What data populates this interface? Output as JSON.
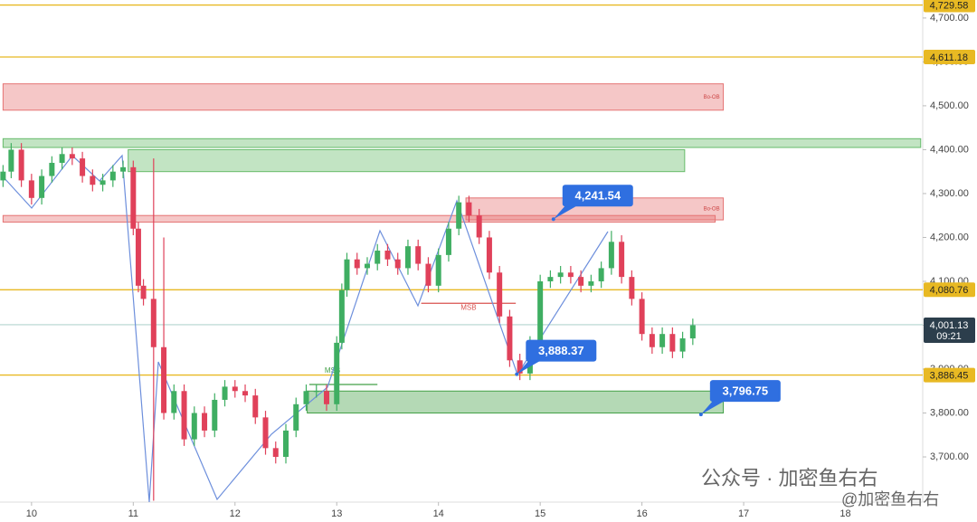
{
  "chart_data": {
    "type": "candlestick",
    "xlim": [
      9.69,
      18.76
    ],
    "ylim": [
      3597,
      4741
    ],
    "xticks": [
      10,
      11,
      12,
      13,
      14,
      15,
      16,
      17,
      18
    ],
    "yticks": [
      {
        "value": 3700,
        "label": "3,700.00"
      },
      {
        "value": 3800,
        "label": "3,800.00"
      },
      {
        "value": 3900,
        "label": "3,900.00"
      },
      {
        "value": 4000,
        "label": "4,000.00"
      },
      {
        "value": 4100,
        "label": "4,100.00"
      },
      {
        "value": 4200,
        "label": "4,200.00"
      },
      {
        "value": 4300,
        "label": "4,300.00"
      },
      {
        "value": 4400,
        "label": "4,400.00"
      },
      {
        "value": 4500,
        "label": "4,500.00"
      },
      {
        "value": 4600,
        "label": "4,600.00"
      },
      {
        "value": 4700,
        "label": "4,700.00"
      }
    ],
    "up_color": "#3fae62",
    "down_color": "#e0415a",
    "x": [
      9.72,
      9.8,
      9.9,
      10.0,
      10.1,
      10.2,
      10.3,
      10.4,
      10.5,
      10.6,
      10.7,
      10.8,
      10.9,
      11.0,
      11.05,
      11.1,
      11.2,
      11.3,
      11.4,
      11.5,
      11.6,
      11.7,
      11.8,
      11.9,
      12.0,
      12.1,
      12.2,
      12.3,
      12.4,
      12.5,
      12.6,
      12.7,
      12.8,
      12.9,
      13.0,
      13.05,
      13.1,
      13.2,
      13.3,
      13.4,
      13.5,
      13.6,
      13.7,
      13.8,
      13.9,
      14.0,
      14.1,
      14.2,
      14.3,
      14.4,
      14.5,
      14.6,
      14.7,
      14.8,
      14.9,
      15.0,
      15.1,
      15.2,
      15.3,
      15.4,
      15.5,
      15.6,
      15.7,
      15.8,
      15.9,
      16.0,
      16.1,
      16.2,
      16.3,
      16.4,
      16.5
    ],
    "open": [
      4330,
      4350,
      4400,
      4330,
      4290,
      4340,
      4370,
      4390,
      4380,
      4340,
      4320,
      4330,
      4350,
      4360,
      4220,
      4090,
      4060,
      3950,
      3800,
      3850,
      3740,
      3800,
      3760,
      3830,
      3860,
      3850,
      3840,
      3790,
      3720,
      3700,
      3760,
      3820,
      3850,
      3850,
      3820,
      3960,
      4080,
      4150,
      4130,
      4140,
      4170,
      4150,
      4130,
      4180,
      4140,
      4090,
      4160,
      4220,
      4280,
      4250,
      4200,
      4120,
      4020,
      3920,
      3890,
      3960,
      4100,
      4110,
      4120,
      4110,
      4090,
      4100,
      4130,
      4190,
      4110,
      4060,
      3980,
      3950,
      3980,
      3940,
      3970
    ],
    "high": [
      4365,
      4415,
      4415,
      4345,
      4355,
      4385,
      4405,
      4405,
      4395,
      4355,
      4345,
      4365,
      4375,
      4375,
      4235,
      4105,
      4380,
      4200,
      3865,
      3865,
      3815,
      3815,
      3845,
      3875,
      3875,
      3865,
      3855,
      3805,
      3735,
      3775,
      3835,
      3865,
      3865,
      3865,
      3975,
      4095,
      4165,
      4165,
      4155,
      4185,
      4185,
      4165,
      4195,
      4195,
      4155,
      4175,
      4235,
      4295,
      4295,
      4265,
      4215,
      4135,
      4035,
      3935,
      3975,
      4115,
      4125,
      4135,
      4135,
      4125,
      4115,
      4145,
      4215,
      4205,
      4125,
      4075,
      3995,
      3995,
      3995,
      3985,
      4015
    ],
    "low": [
      4315,
      4335,
      4315,
      4275,
      4275,
      4325,
      4355,
      4365,
      4325,
      4305,
      4305,
      4315,
      4335,
      4205,
      4075,
      4045,
      3600,
      3785,
      3785,
      3725,
      3725,
      3745,
      3745,
      3815,
      3835,
      3825,
      3775,
      3705,
      3685,
      3685,
      3745,
      3805,
      3835,
      3805,
      3805,
      3945,
      4065,
      4115,
      4115,
      4125,
      4135,
      4115,
      4115,
      4125,
      4075,
      4075,
      4145,
      4205,
      4235,
      4185,
      4105,
      4005,
      3905,
      3875,
      3875,
      3945,
      4085,
      4095,
      4095,
      4075,
      4075,
      4085,
      4115,
      4095,
      4045,
      3965,
      3935,
      3935,
      3925,
      3925,
      3955
    ],
    "close": [
      4350,
      4400,
      4330,
      4290,
      4340,
      4370,
      4390,
      4380,
      4340,
      4320,
      4330,
      4350,
      4360,
      4220,
      4090,
      4060,
      3950,
      3800,
      3850,
      3740,
      3800,
      3760,
      3830,
      3860,
      3850,
      3840,
      3790,
      3720,
      3700,
      3760,
      3820,
      3850,
      3850,
      3820,
      3960,
      4080,
      4150,
      4130,
      4140,
      4170,
      4150,
      4130,
      4180,
      4140,
      4090,
      4160,
      4220,
      4280,
      4250,
      4200,
      4120,
      4020,
      3920,
      3890,
      3960,
      4100,
      4110,
      4120,
      4110,
      4090,
      4100,
      4130,
      4190,
      4110,
      4060,
      3980,
      3950,
      3980,
      3940,
      3970,
      4000
    ],
    "levels": [
      {
        "value": 4729.58,
        "label": "4,729.58"
      },
      {
        "value": 4611.18,
        "label": "4,611.18"
      },
      {
        "value": 4080.76,
        "label": "4,080.76"
      },
      {
        "value": 3886.45,
        "label": "3,886.45"
      }
    ],
    "level_color": "#e8b923",
    "current_price": {
      "value": 4001.13,
      "label": "4,001.13",
      "time": "09:21"
    },
    "zones": [
      {
        "top": 4550,
        "bottom": 4490,
        "x0": 9.72,
        "x1": 16.8,
        "color": "#e57373",
        "label": "Bo-OB"
      },
      {
        "top": 4425,
        "bottom": 4405,
        "x0": 9.72,
        "x1": 18.74,
        "color": "#66bb6a"
      },
      {
        "top": 4400,
        "bottom": 4350,
        "x0": 10.95,
        "x1": 16.42,
        "color": "#66bb6a"
      },
      {
        "top": 4290,
        "bottom": 4240,
        "x0": 14.27,
        "x1": 16.8,
        "color": "#e57373",
        "label": "Bo-OB"
      },
      {
        "top": 4250,
        "bottom": 4235,
        "x0": 9.72,
        "x1": 16.72,
        "color": "#e57373"
      },
      {
        "top": 3850,
        "bottom": 3800,
        "x0": 12.71,
        "x1": 16.8,
        "color": "#43a047"
      }
    ],
    "msb": [
      {
        "label": "MSB",
        "value": 4050,
        "x0": 13.83,
        "x1": 14.76,
        "color": "#d9534f"
      },
      {
        "label": "MSB",
        "value": 3865,
        "x0": 12.73,
        "x1": 13.4,
        "color": "#43a047"
      }
    ],
    "callouts": [
      {
        "label": "4,241.54",
        "value": 4241.54,
        "x": 15.13
      },
      {
        "label": "3,888.37",
        "value": 3888.37,
        "x": 14.77
      },
      {
        "label": "3,796.75",
        "value": 3796.75,
        "x": 16.58
      }
    ],
    "watermark": "公众号 · 加密鱼右右",
    "watermark_handle": "@加密鱼右右"
  }
}
